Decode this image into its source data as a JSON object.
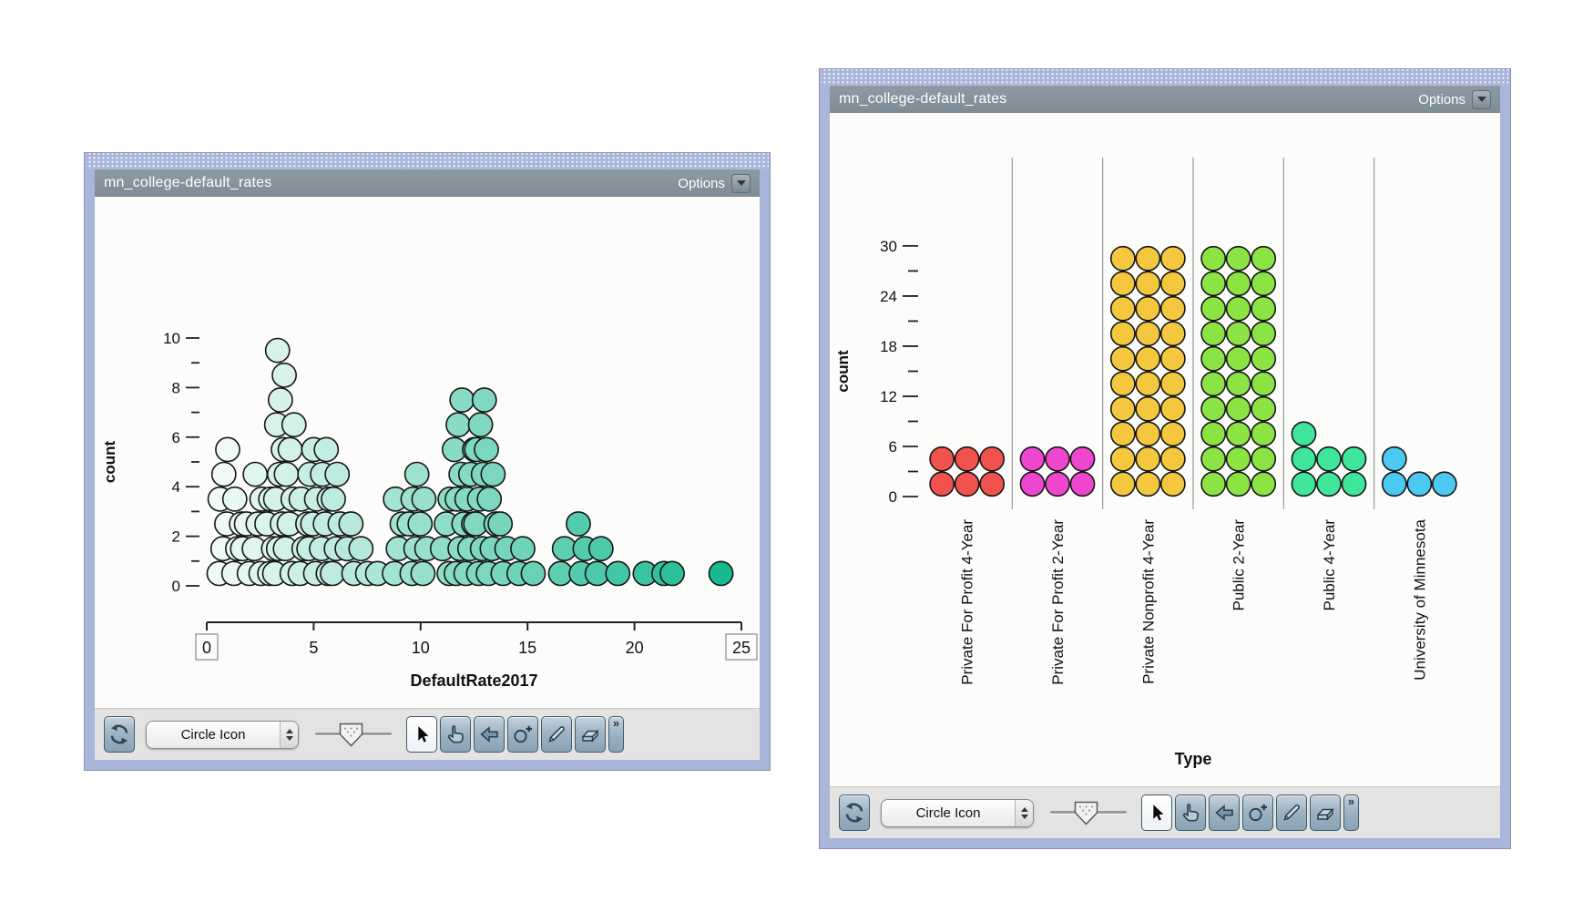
{
  "windows": [
    {
      "title": "mn_college-default_rates",
      "options_label": "Options"
    },
    {
      "title": "mn_college-default_rates",
      "options_label": "Options"
    }
  ],
  "toolbar": {
    "icon_style_value": "Circle Icon",
    "more_symbol": "»",
    "tools": [
      "mix",
      "icon-style-select",
      "size-slider",
      "select",
      "hand",
      "reference-arrow",
      "counter",
      "draw",
      "eraser",
      "more"
    ]
  },
  "colors": {
    "window_frame": "#a9b5d9",
    "titlebar": "#85919b",
    "toolbar_bg": "#e3e3e1",
    "dot_stroke": "#161616"
  },
  "chart_data": [
    {
      "type": "scatter",
      "variant": "stacked-dot-plot",
      "xlabel": "DefaultRate2017",
      "ylabel": "count",
      "xlim": [
        0,
        25
      ],
      "ylim": [
        0,
        10
      ],
      "x_ticks": [
        0,
        5,
        10,
        15,
        20,
        25
      ],
      "boxed_x_ticks": [
        0,
        25
      ],
      "y_major_ticks": [
        0,
        2,
        4,
        6,
        8,
        10
      ],
      "y_minor_ticks": [
        1,
        3,
        5,
        7,
        9
      ],
      "grid": false,
      "legend": "none",
      "color_scale": {
        "attribute": "DefaultRate2017",
        "min_color": "#f6fcfa",
        "max_color": "#0fb68b"
      },
      "stacks": [
        {
          "x": 0.8,
          "count": 6
        },
        {
          "x": 1.4,
          "count": 4
        },
        {
          "x": 1.9,
          "count": 3
        },
        {
          "x": 2.4,
          "count": 5
        },
        {
          "x": 2.9,
          "count": 4
        },
        {
          "x": 3.4,
          "count": 10
        },
        {
          "x": 3.9,
          "count": 7
        },
        {
          "x": 4.5,
          "count": 4
        },
        {
          "x": 5.0,
          "count": 6
        },
        {
          "x": 5.5,
          "count": 6
        },
        {
          "x": 6.1,
          "count": 5
        },
        {
          "x": 6.7,
          "count": 3
        },
        {
          "x": 7.3,
          "count": 2
        },
        {
          "x": 7.9,
          "count": 1
        },
        {
          "x": 9.0,
          "count": 4
        },
        {
          "x": 9.6,
          "count": 5
        },
        {
          "x": 10.2,
          "count": 4
        },
        {
          "x": 11.2,
          "count": 4
        },
        {
          "x": 11.8,
          "count": 8
        },
        {
          "x": 12.3,
          "count": 6
        },
        {
          "x": 12.8,
          "count": 8
        },
        {
          "x": 13.3,
          "count": 6
        },
        {
          "x": 13.9,
          "count": 3
        },
        {
          "x": 14.6,
          "count": 2
        },
        {
          "x": 15.4,
          "count": 1
        },
        {
          "x": 16.5,
          "count": 2
        },
        {
          "x": 17.6,
          "count": 3
        },
        {
          "x": 18.3,
          "count": 2
        },
        {
          "x": 19.4,
          "count": 1
        },
        {
          "x": 20.5,
          "count": 1
        },
        {
          "x": 21.2,
          "count": 1
        },
        {
          "x": 21.9,
          "count": 1
        },
        {
          "x": 24.0,
          "count": 1
        }
      ]
    },
    {
      "type": "scatter",
      "variant": "fused-dot-plot",
      "xlabel": "Type",
      "ylabel": "count",
      "ylim": [
        0,
        30
      ],
      "y_major_ticks": [
        0,
        6,
        12,
        18,
        24,
        30
      ],
      "y_minor_ticks": [
        3,
        9,
        15,
        21,
        27
      ],
      "grid": false,
      "legend": "none",
      "dots_per_row": 3,
      "categories": [
        "Private For Profit 4-Year",
        "Private For Profit 2-Year",
        "Private Nonprofit 4-Year",
        "Public 2-Year",
        "Public 4-Year",
        "University of Minnesota"
      ],
      "counts": [
        6,
        6,
        30,
        30,
        7,
        4
      ],
      "colors": [
        "#f2524e",
        "#ee46cf",
        "#f3c83f",
        "#8ce344",
        "#3fe59b",
        "#4cc9f2"
      ]
    }
  ]
}
